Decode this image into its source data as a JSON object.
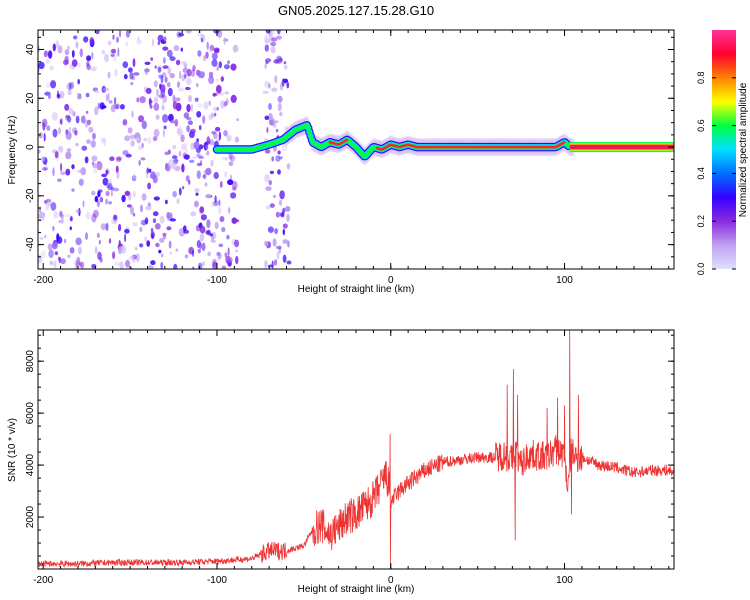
{
  "figure_title": "GN05.2025.127.15.28.G10",
  "colors": {
    "snr_line": "#ee3333",
    "center_line": "#f01850",
    "colorbar_stops": [
      "#e0e0ff",
      "#c0a0f0",
      "#8a2be2",
      "#3300ff",
      "#0070ff",
      "#00e0ff",
      "#00ff40",
      "#ffff00",
      "#ff8000",
      "#ff0030",
      "#ff3399"
    ]
  },
  "chart_data": [
    {
      "type": "heatmap",
      "title": "GN05.2025.127.15.28.G10",
      "xlabel": "Height of straight line (km)",
      "ylabel": "Frequency (Hz)",
      "xlim": [
        -203,
        163
      ],
      "ylim": [
        -50,
        48
      ],
      "xticks": [
        -200,
        -100,
        0,
        100
      ],
      "xtick_labels": [
        "-200",
        "-100",
        "0",
        "100"
      ],
      "yticks": [
        -40,
        -20,
        0,
        20,
        40
      ],
      "ytick_labels": [
        "-40",
        "-20",
        "0",
        "20",
        "40"
      ],
      "colorbar": {
        "label": "Normalized spectral amplitude",
        "range": [
          0,
          1
        ],
        "ticks": [
          0.0,
          0.2,
          0.4,
          0.6,
          0.8
        ],
        "tick_labels": [
          "0.0",
          "0.2",
          "0.4",
          "0.6",
          "0.8"
        ]
      },
      "regions": [
        {
          "description": "scattered noise",
          "x_range": [
            -203,
            -88
          ],
          "y_range": [
            -50,
            48
          ]
        },
        {
          "description": "scattered noise",
          "x_range": [
            -72,
            -58
          ],
          "y_range": [
            -50,
            48
          ]
        }
      ],
      "ridge": {
        "x": [
          -100,
          -90,
          -80,
          -70,
          -62,
          -55,
          -48,
          -45,
          -40,
          -35,
          -30,
          -25,
          -20,
          -15,
          -10,
          -5,
          0,
          5,
          10,
          15,
          20,
          40,
          60,
          80,
          95,
          100,
          103,
          120,
          140,
          160
        ],
        "y": [
          -1,
          -1,
          -1,
          1,
          3,
          7,
          9,
          2,
          0,
          2,
          1,
          3,
          0,
          -4,
          0,
          -1,
          1,
          0,
          1,
          0,
          0,
          0,
          0,
          0,
          0,
          2,
          0,
          0,
          0,
          0
        ]
      },
      "grid": false
    },
    {
      "type": "line",
      "xlabel": "Height of straight line (km)",
      "ylabel": "SNR (10 * v/v)",
      "xlim": [
        -203,
        163
      ],
      "ylim": [
        0,
        9200
      ],
      "xticks": [
        -200,
        -100,
        0,
        100
      ],
      "xtick_labels": [
        "-200",
        "-100",
        "0",
        "100"
      ],
      "yticks": [
        2000,
        4000,
        6000,
        8000
      ],
      "ytick_labels": [
        "2000",
        "4000",
        "6000",
        "8000"
      ],
      "series": [
        {
          "x": [
            -203,
            -180,
            -160,
            -140,
            -120,
            -100,
            -90,
            -80,
            -70,
            -60,
            -50,
            -45,
            -40,
            -35,
            -30,
            -25,
            -20,
            -15,
            -10,
            -5,
            -3,
            -1,
            0,
            5,
            10,
            20,
            30,
            40,
            50,
            60,
            65,
            70,
            72,
            75,
            78,
            80,
            90,
            95,
            100,
            102,
            104,
            106,
            110,
            120,
            130,
            140,
            150,
            160,
            163
          ],
          "y": [
            200,
            200,
            250,
            250,
            250,
            300,
            350,
            400,
            700,
            700,
            900,
            1500,
            1700,
            1300,
            1600,
            2000,
            2100,
            2400,
            2700,
            3300,
            3600,
            3200,
            2600,
            3000,
            3300,
            3800,
            4100,
            4200,
            4300,
            4300,
            4400,
            4200,
            4500,
            4000,
            4300,
            4400,
            4300,
            4600,
            4400,
            3000,
            4600,
            4300,
            4300,
            4000,
            3900,
            3700,
            3800,
            3800,
            3700
          ]
        }
      ],
      "spikes": [
        {
          "x": -0.5,
          "y": 5200
        },
        {
          "x": -0.2,
          "y": 100
        },
        {
          "x": 67,
          "y": 7100
        },
        {
          "x": 70.5,
          "y": 7700
        },
        {
          "x": 71.5,
          "y": 1100
        },
        {
          "x": 73,
          "y": 6700
        },
        {
          "x": 90,
          "y": 6200
        },
        {
          "x": 96,
          "y": 6600
        },
        {
          "x": 100,
          "y": 6300
        },
        {
          "x": 103,
          "y": 9200
        },
        {
          "x": 104,
          "y": 2100
        },
        {
          "x": 108,
          "y": 6700
        }
      ],
      "grid": false
    }
  ]
}
